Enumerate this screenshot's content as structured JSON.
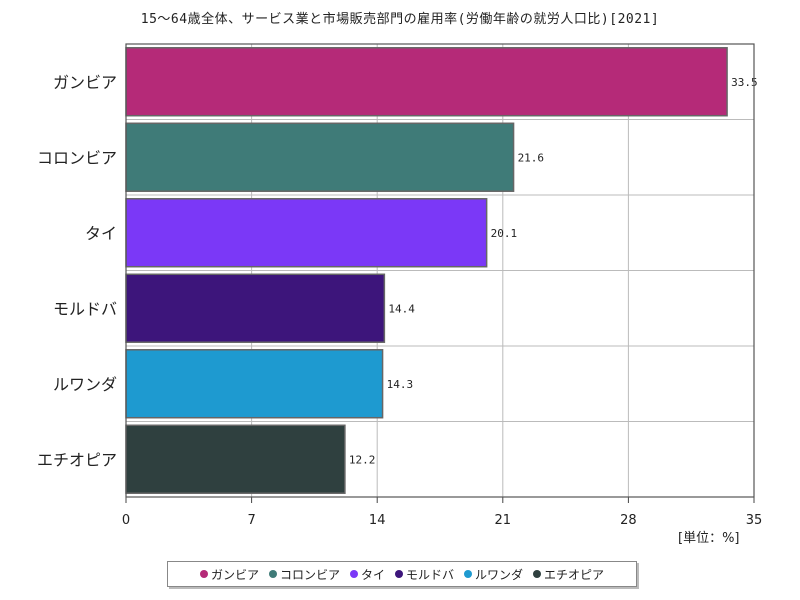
{
  "chart_data": {
    "type": "bar",
    "orientation": "horizontal",
    "title": "15～64歳全体、サービス業と市場販売部門の雇用率(労働年齢の就労人口比)[2021]",
    "unit_label": "[単位：%]",
    "categories": [
      "ガンビア",
      "コロンビア",
      "タイ",
      "モルドバ",
      "ルワンダ",
      "エチオピア"
    ],
    "values": [
      33.5,
      21.6,
      20.1,
      14.4,
      14.3,
      12.2
    ],
    "value_labels": [
      "33.5",
      "21.6",
      "20.1",
      "14.4",
      "14.3",
      "12.2"
    ],
    "colors": [
      "#b52a78",
      "#3f7b78",
      "#7b38f7",
      "#3d157b",
      "#1e9ad0",
      "#2f403f"
    ],
    "xlim": [
      0,
      35
    ],
    "xticks": [
      0,
      7,
      14,
      21,
      28,
      35
    ],
    "grid": true,
    "legend_position": "bottom"
  }
}
